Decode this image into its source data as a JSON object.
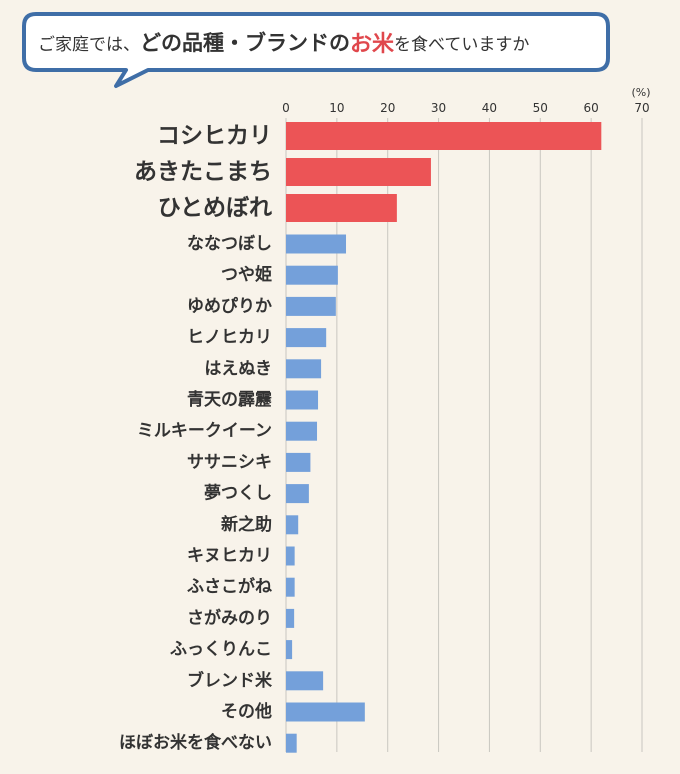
{
  "header": {
    "question_part1": "ご家庭では、",
    "question_part2": "どの品種・ブランドの",
    "question_part3": "お米",
    "question_part4": "を食べていますか"
  },
  "colors": {
    "top": "#ec5456",
    "rest": "#74a0da",
    "bubble_border": "#3f6ea7",
    "grid": "#c9c6c0",
    "text": "#333333"
  },
  "chart_data": {
    "type": "bar",
    "orientation": "horizontal",
    "unit": "(%)",
    "xlim": [
      0,
      70
    ],
    "xticks": [
      0,
      10,
      20,
      30,
      40,
      50,
      60,
      70
    ],
    "grid": true,
    "categories": [
      "コシヒカリ",
      "あきたこまち",
      "ひとめぼれ",
      "ななつぼし",
      "つや姫",
      "ゆめぴりか",
      "ヒノヒカリ",
      "はえぬき",
      "青天の霹靂",
      "ミルキークイーン",
      "ササニシキ",
      "夢つくし",
      "新之助",
      "キヌヒカリ",
      "ふさこがね",
      "さがみのり",
      "ふっくりんこ",
      "ブレンド米",
      "その他",
      "ほぼお米を食べない"
    ],
    "values": [
      62,
      28.5,
      21.8,
      11.8,
      10.2,
      9.8,
      7.9,
      6.9,
      6.3,
      6.1,
      4.8,
      4.5,
      2.4,
      1.7,
      1.7,
      1.6,
      1.2,
      7.3,
      15.5,
      2.1
    ],
    "highlight_top": 3
  }
}
